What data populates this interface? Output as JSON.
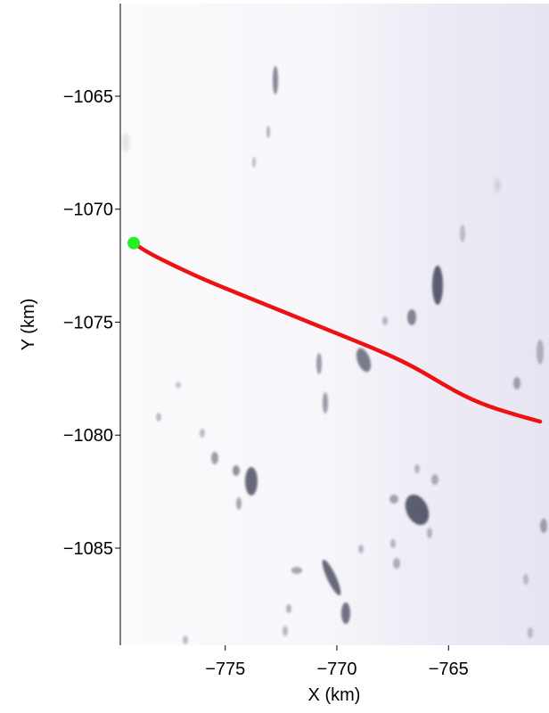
{
  "chart_data": {
    "type": "map",
    "xlabel": "X (km)",
    "ylabel": "Y (km)",
    "xlim": [
      -779.7,
      -760.5
    ],
    "ylim": [
      -1089.3,
      -1060.9
    ],
    "x_ticks": [
      -775,
      -770,
      -765
    ],
    "x_tick_labels": [
      "−775",
      "−770",
      "−765"
    ],
    "y_ticks": [
      -1065,
      -1070,
      -1075,
      -1080,
      -1085
    ],
    "y_tick_labels": [
      "−1065",
      "−1070",
      "−1075",
      "−1080",
      "−1085"
    ],
    "grid": false,
    "background": "satellite imagery of ice sheet surface",
    "track": {
      "color": "#ee1111",
      "points": [
        [
          -779.1,
          -1071.5
        ],
        [
          -778.5,
          -1071.9
        ],
        [
          -777.5,
          -1072.4
        ],
        [
          -776.0,
          -1073.1
        ],
        [
          -774.0,
          -1073.9
        ],
        [
          -772.0,
          -1074.7
        ],
        [
          -770.0,
          -1075.5
        ],
        [
          -768.0,
          -1076.3
        ],
        [
          -766.5,
          -1077.0
        ],
        [
          -765.0,
          -1077.9
        ],
        [
          -763.6,
          -1078.6
        ],
        [
          -762.0,
          -1079.1
        ],
        [
          -760.9,
          -1079.4
        ]
      ]
    },
    "start_marker": {
      "color": "#22ee22",
      "x": -779.1,
      "y": -1071.5
    }
  }
}
